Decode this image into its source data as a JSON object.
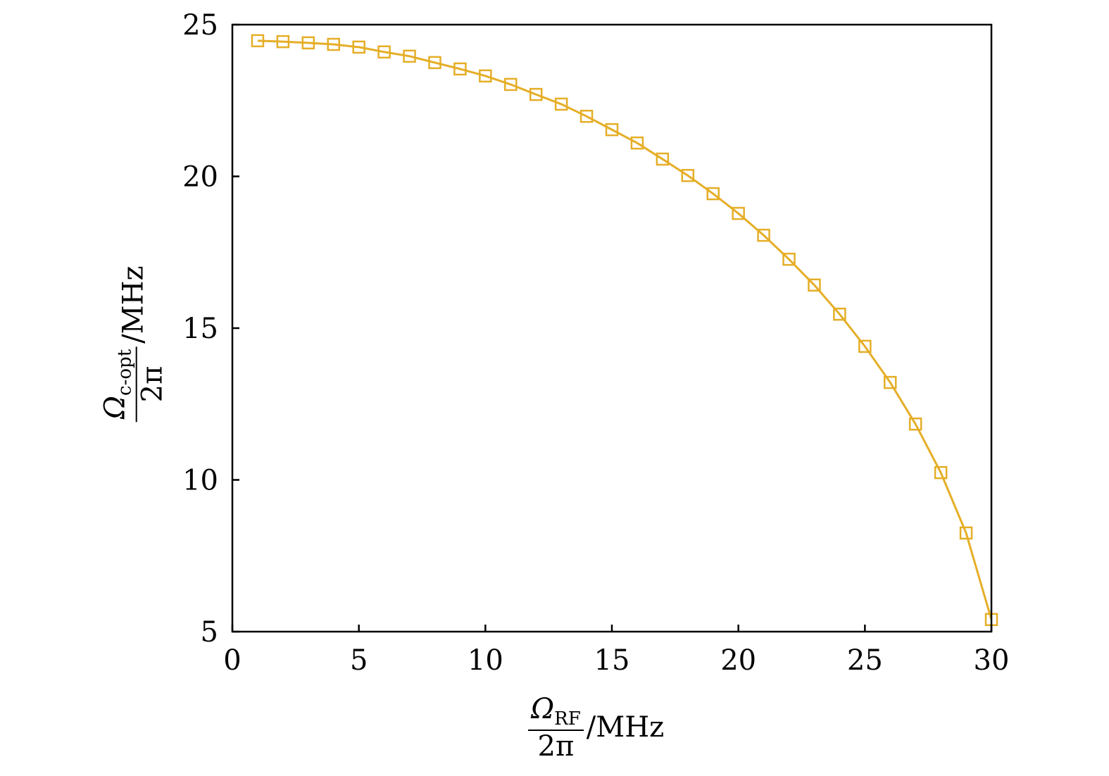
{
  "chart_data": {
    "type": "line",
    "title": "",
    "xlabel": {
      "symbol": "Ω",
      "subscript": "RF",
      "denominator": "2π",
      "unit": "/MHz"
    },
    "ylabel": {
      "symbol": "Ω",
      "subscript": "c-opt",
      "denominator": "2π",
      "unit": "/MHz"
    },
    "xlim": [
      0,
      30
    ],
    "ylim": [
      5,
      25
    ],
    "xticks": [
      0,
      5,
      10,
      15,
      20,
      25,
      30
    ],
    "yticks": [
      5,
      10,
      15,
      20,
      25
    ],
    "grid": false,
    "marker": "square",
    "color": "#E5AE27",
    "x": [
      1,
      2,
      3,
      4,
      5,
      6,
      7,
      8,
      9,
      10,
      11,
      12,
      13,
      14,
      15,
      16,
      17,
      18,
      19,
      20,
      21,
      22,
      23,
      24,
      25,
      26,
      27,
      28,
      29,
      30
    ],
    "y": [
      24.47,
      24.44,
      24.4,
      24.35,
      24.26,
      24.1,
      23.96,
      23.75,
      23.54,
      23.31,
      23.03,
      22.7,
      22.38,
      21.98,
      21.54,
      21.1,
      20.57,
      20.03,
      19.43,
      18.78,
      18.06,
      17.27,
      16.42,
      15.46,
      14.4,
      13.21,
      11.84,
      10.24,
      8.25,
      5.4
    ]
  }
}
